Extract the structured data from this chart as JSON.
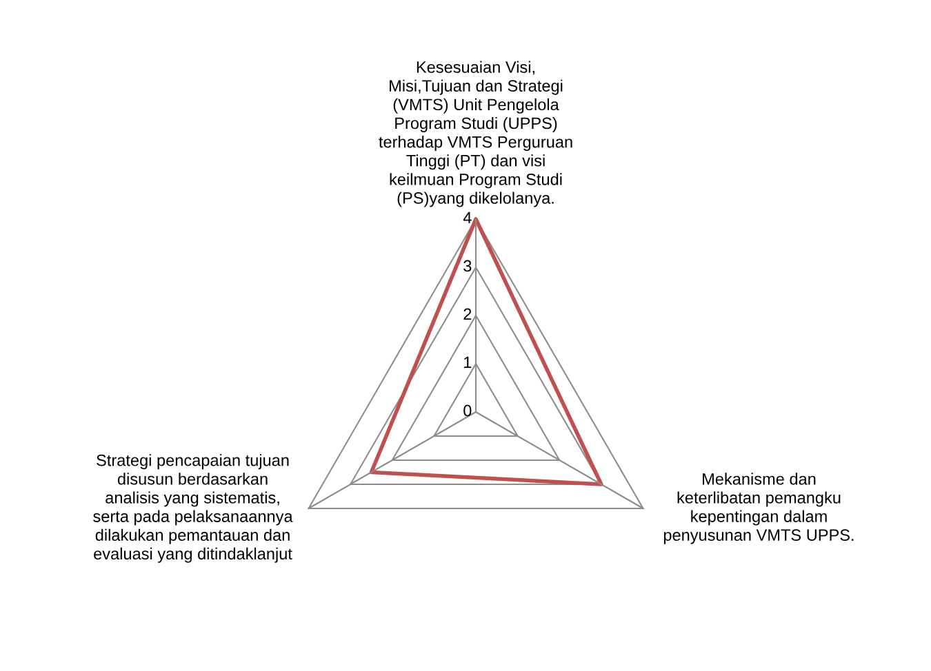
{
  "chart_data": {
    "type": "radar",
    "categories": [
      "Kesesuaian Visi,\nMisi,Tujuan dan Strategi\n(VMTS) Unit Pengelola\nProgram Studi (UPPS)\nterhadap VMTS Perguruan\nTinggi (PT) dan visi\nkeilmuan Program Studi\n(PS)yang dikelolanya.",
      "Mekanisme dan\nketerlibatan pemangku\nkepentingan dalam\npenyusunan VMTS UPPS.",
      "Strategi pencapaian tujuan\ndisusun berdasarkan\nanalisis yang sistematis,\nserta pada pelaksanaannya\ndilakukan pemantauan dan\nevaluasi yang ditindaklanjut"
    ],
    "series": [
      {
        "color": "#c0504d",
        "values": [
          4,
          3,
          2.5
        ]
      }
    ],
    "ylim": [
      0,
      4
    ],
    "yticks": [
      0,
      1,
      2,
      3,
      4
    ],
    "grid": true
  }
}
